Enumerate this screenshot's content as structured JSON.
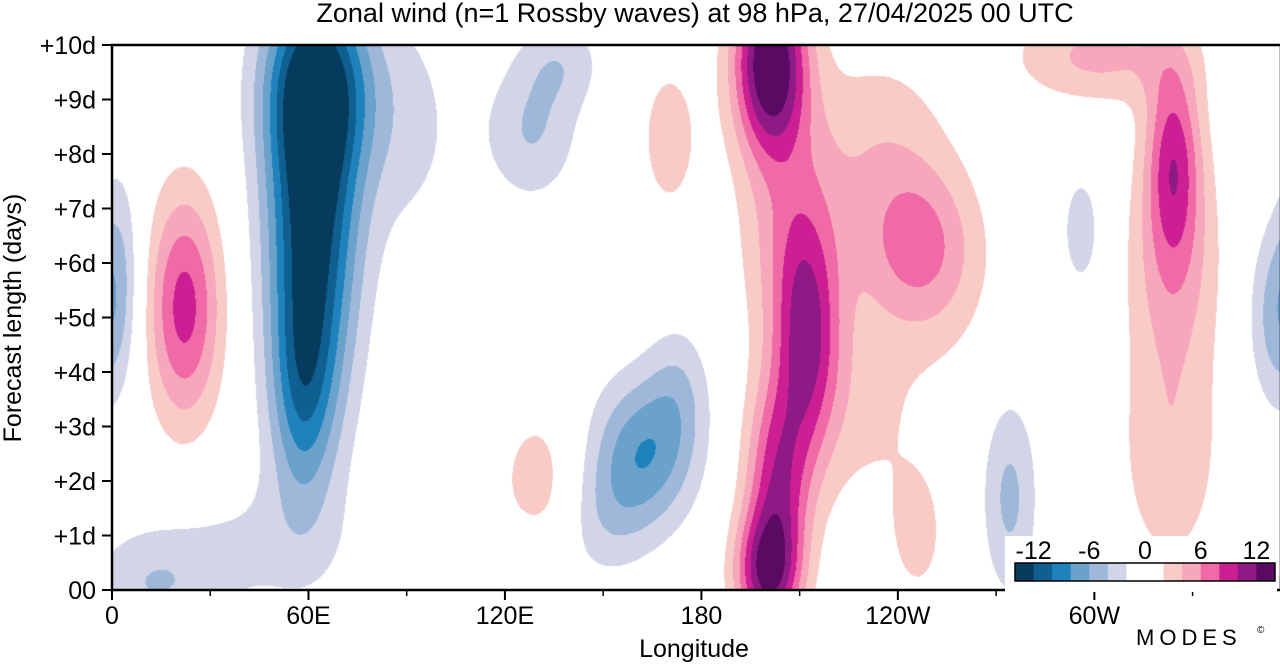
{
  "chart_data": {
    "type": "heatmap",
    "title": "Zonal wind (n=1 Rossby waves) at 98 hPa,  27/04/2025  00 UTC",
    "xlabel": "Longitude",
    "ylabel": "Forecast length (days)",
    "x_ticks": [
      {
        "lon": 0,
        "label": "0"
      },
      {
        "lon": 60,
        "label": "60E"
      },
      {
        "lon": 120,
        "label": "120E"
      },
      {
        "lon": 180,
        "label": "180"
      },
      {
        "lon": 240,
        "label": "120W"
      },
      {
        "lon": 300,
        "label": "60W"
      }
    ],
    "x_minor_ticks": [
      30,
      90,
      150,
      210,
      270,
      330
    ],
    "xlim": [
      0,
      357
    ],
    "y_ticks": [
      {
        "day": 0,
        "label": "00"
      },
      {
        "day": 1,
        "label": "+1d"
      },
      {
        "day": 2,
        "label": "+2d"
      },
      {
        "day": 3,
        "label": "+3d"
      },
      {
        "day": 4,
        "label": "+4d"
      },
      {
        "day": 5,
        "label": "+5d"
      },
      {
        "day": 6,
        "label": "+6d"
      },
      {
        "day": 7,
        "label": "+7d"
      },
      {
        "day": 8,
        "label": "+8d"
      },
      {
        "day": 9,
        "label": "+9d"
      },
      {
        "day": 10,
        "label": "+10d"
      }
    ],
    "ylim": [
      0,
      10
    ],
    "contour_levels": [
      -12,
      -10,
      -8,
      -6,
      -4,
      -2,
      0,
      2,
      4,
      6,
      8,
      10,
      12
    ],
    "colorbar": {
      "labels": [
        {
          "value": -12,
          "label": "-12"
        },
        {
          "value": -6,
          "label": "-6"
        },
        {
          "value": 0,
          "label": "0"
        },
        {
          "value": 6,
          "label": "6"
        },
        {
          "value": 12,
          "label": "12"
        }
      ],
      "colors": [
        "#063b5e",
        "#0f5f91",
        "#1f82bd",
        "#6aa2cc",
        "#9fb8da",
        "#d2d5e7",
        "#ffffff",
        "#ffffff",
        "#f8cbc7",
        "#f7a7bb",
        "#ef6aa6",
        "#cc1f93",
        "#901a85",
        "#5b0a63"
      ]
    },
    "features": [
      {
        "type": "min",
        "lon": 61,
        "day": 7.0,
        "value": -13.5,
        "sx": 10,
        "sy": 2.6
      },
      {
        "type": "min",
        "lon": 63,
        "day": 9.3,
        "value": -8,
        "sx": 12,
        "sy": 1.2
      },
      {
        "type": "min",
        "lon": 58,
        "day": 3.6,
        "value": -6,
        "sx": 7,
        "sy": 1.5
      },
      {
        "type": "min",
        "lon": 43,
        "day": 0.8,
        "value": -2.2,
        "sx": 22,
        "sy": 0.9
      },
      {
        "type": "min",
        "lon": 12,
        "day": 0.1,
        "value": -3.5,
        "sx": 14,
        "sy": 0.7
      },
      {
        "type": "min",
        "lon": 90,
        "day": 8.5,
        "value": -2.5,
        "sx": 12,
        "sy": 1.6
      },
      {
        "type": "min",
        "lon": 2,
        "day": 5.8,
        "value": -4,
        "sx": 5,
        "sy": 1.4
      },
      {
        "type": "min",
        "lon": 162,
        "day": 2.5,
        "value": -7.5,
        "sx": 11,
        "sy": 1.0
      },
      {
        "type": "min",
        "lon": 173,
        "day": 3.7,
        "value": -3,
        "sx": 7,
        "sy": 0.9
      },
      {
        "type": "min",
        "lon": 150,
        "day": 1.3,
        "value": -2.5,
        "sx": 9,
        "sy": 0.8
      },
      {
        "type": "min",
        "lon": 128,
        "day": 8.4,
        "value": -4,
        "sx": 10,
        "sy": 0.9
      },
      {
        "type": "min",
        "lon": 137,
        "day": 9.7,
        "value": -3,
        "sx": 9,
        "sy": 0.6
      },
      {
        "type": "min",
        "lon": 123,
        "day": 0.4,
        "value": -2.2,
        "sx": 11,
        "sy": 0.5
      },
      {
        "type": "min",
        "lon": 274,
        "day": 1.7,
        "value": -4.5,
        "sx": 6,
        "sy": 1.3
      },
      {
        "type": "min",
        "lon": 296,
        "day": 6.6,
        "value": -3,
        "sx": 5,
        "sy": 0.9
      },
      {
        "type": "min",
        "lon": 355,
        "day": 5.0,
        "value": -4.5,
        "sx": 6,
        "sy": 1.2
      },
      {
        "type": "max",
        "lon": 22,
        "day": 5.2,
        "value": 8.8,
        "sx": 8,
        "sy": 1.5
      },
      {
        "type": "max",
        "lon": 201,
        "day": 9.7,
        "value": 14.5,
        "sx": 8,
        "sy": 1.2
      },
      {
        "type": "max",
        "lon": 208,
        "day": 6.5,
        "value": 5,
        "sx": 11,
        "sy": 1.5
      },
      {
        "type": "max",
        "lon": 212,
        "day": 4.5,
        "value": 8.2,
        "sx": 7,
        "sy": 1.5
      },
      {
        "type": "max",
        "lon": 203,
        "day": 2.0,
        "value": 8.5,
        "sx": 7,
        "sy": 1.3
      },
      {
        "type": "max",
        "lon": 200,
        "day": 0.3,
        "value": 10.5,
        "sx": 7,
        "sy": 0.8
      },
      {
        "type": "max",
        "lon": 244,
        "day": 6.4,
        "value": 5,
        "sx": 12,
        "sy": 1.0
      },
      {
        "type": "max",
        "lon": 234,
        "day": 8.3,
        "value": 3,
        "sx": 15,
        "sy": 1.2
      },
      {
        "type": "max",
        "lon": 228,
        "day": 3.5,
        "value": 2.5,
        "sx": 14,
        "sy": 1.5
      },
      {
        "type": "max",
        "lon": 246,
        "day": 1.0,
        "value": 2.5,
        "sx": 7,
        "sy": 1.0
      },
      {
        "type": "max",
        "lon": 324,
        "day": 8.0,
        "value": 8,
        "sx": 6,
        "sy": 1.3
      },
      {
        "type": "max",
        "lon": 324,
        "day": 6.0,
        "value": 4.5,
        "sx": 10,
        "sy": 1.5
      },
      {
        "type": "max",
        "lon": 323,
        "day": 2.5,
        "value": 3.5,
        "sx": 11,
        "sy": 1.6
      },
      {
        "type": "max",
        "lon": 301,
        "day": 9.8,
        "value": 4.5,
        "sx": 18,
        "sy": 0.6
      },
      {
        "type": "max",
        "lon": 130,
        "day": 2.0,
        "value": 3,
        "sx": 9,
        "sy": 1.0
      },
      {
        "type": "max",
        "lon": 170,
        "day": 8.3,
        "value": 3,
        "sx": 7,
        "sy": 1.1
      },
      {
        "type": "max",
        "lon": 253,
        "day": 5.8,
        "value": 2.3,
        "sx": 12,
        "sy": 1.3
      }
    ]
  },
  "branding": {
    "logo_text": "MODES",
    "logo_mark": "©"
  }
}
